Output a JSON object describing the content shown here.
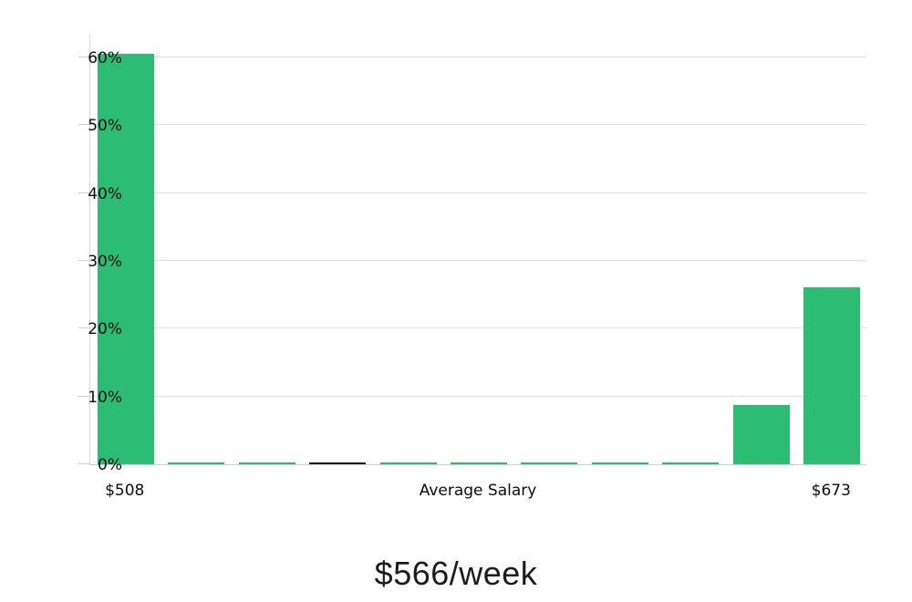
{
  "chart_data": {
    "type": "bar",
    "title": "$566/week",
    "xlabel": "Average Salary",
    "ylabel": "",
    "categories": [
      "$508",
      "",
      "",
      "",
      "",
      "",
      "",
      "",
      "",
      "",
      "$673"
    ],
    "x_first_tick": "$508",
    "x_last_tick": "$673",
    "x_range_dollars": [
      508,
      673
    ],
    "values": [
      60.5,
      0.3,
      0.3,
      0.3,
      0.3,
      0.3,
      0.3,
      0.3,
      0.3,
      8.7,
      26.1
    ],
    "highlighted_bar_index": 3,
    "highlighted_bar_meaning": "bin containing average salary",
    "average_value_label": "$566/week",
    "y_ticks": [
      {
        "label": "0%",
        "value": 0
      },
      {
        "label": "10%",
        "value": 10
      },
      {
        "label": "20%",
        "value": 20
      },
      {
        "label": "30%",
        "value": 30
      },
      {
        "label": "40%",
        "value": 40
      },
      {
        "label": "50%",
        "value": 50
      },
      {
        "label": "60%",
        "value": 60
      }
    ],
    "ylim": [
      0,
      63.5
    ],
    "grid": true,
    "legend": null
  },
  "colors": {
    "bar_green": "#2dbc74",
    "bar_highlight_black": "#15151f",
    "gridline": "#e0e0e0",
    "axis_line": "#d9d9d9",
    "text": "#0d0d0d"
  }
}
